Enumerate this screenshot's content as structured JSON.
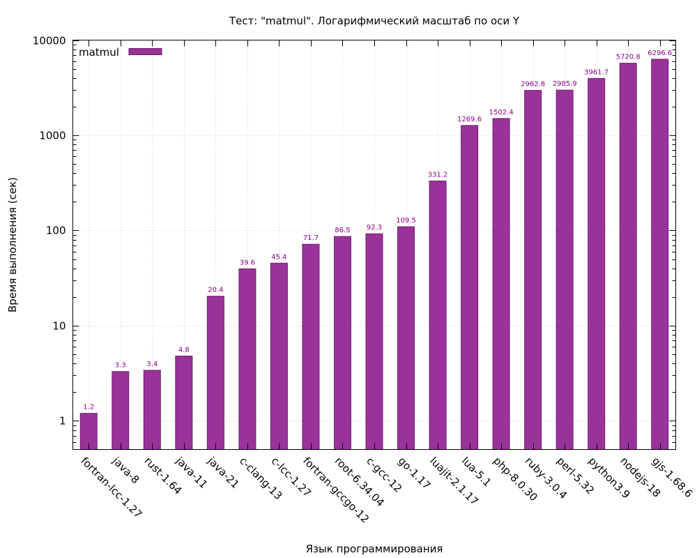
{
  "chart_data": {
    "type": "bar",
    "title": "Тест: \"matmul\". Логарифмический масштаб по оси Y",
    "xlabel": "Язык программирования",
    "ylabel": "Время выполнения (сек)",
    "yscale": "log",
    "ylim": [
      0.5,
      10000
    ],
    "yticks": [
      1,
      10,
      100,
      1000,
      10000
    ],
    "ytick_labels": [
      "1",
      "10",
      "100",
      "1000",
      "10000"
    ],
    "grid": true,
    "legend_position": "top-left",
    "bar_color": "#993399",
    "bar_edge_color": "#6b1f6b",
    "label_color": "#880088",
    "series": [
      {
        "name": "matmul",
        "values": [
          1.2,
          3.3,
          3.4,
          4.8,
          20.4,
          39.6,
          45.4,
          71.7,
          86.5,
          92.3,
          109.5,
          331.2,
          1269.6,
          1502.4,
          2962.8,
          2985.9,
          3961.7,
          5720.8,
          6296.6
        ],
        "labels": [
          "1.2",
          "3.3",
          "3.4",
          "4.8",
          "20.4",
          "39.6",
          "45.4",
          "71.7",
          "86.5",
          "92.3",
          "109.5",
          "331.2",
          "1269.6",
          "1502.4",
          "2962.8",
          "2985.9",
          "3961.7",
          "5720.8",
          "6296.6"
        ]
      }
    ],
    "categories": [
      "fortran-lcc-1.27",
      "java-8",
      "rust-1.64",
      "java-11",
      "java-21",
      "c-clang-13",
      "c-lcc-1.27",
      "fortran-gccgo-12",
      "root-6.34.04",
      "c-gcc-12",
      "go-1.17",
      "luajit-2.1.17",
      "lua-5.1",
      "php-8.0.30",
      "ruby-3.0.4",
      "perl-5.32",
      "python3.9",
      "nodejs-18",
      "gjs-1.68.6"
    ]
  }
}
